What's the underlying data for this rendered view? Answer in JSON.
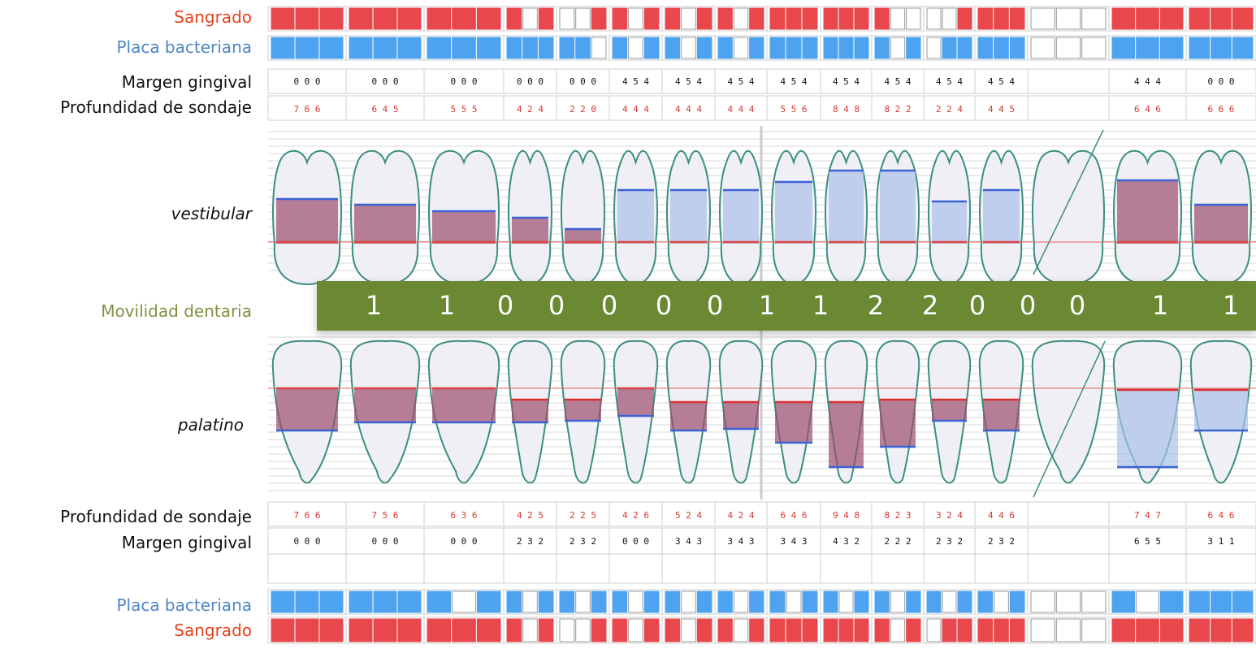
{
  "labels": {
    "bleeding_top": "Sangrado",
    "plaque_top": "Placa bacteriana",
    "margin_top": "Margen gingival",
    "probing_top": "Profundidad de sondaje",
    "vestibular": "vestibular",
    "mobility": "Movilidad dentaria",
    "palatal": "palatino",
    "probing_bottom": "Profundidad de sondaje",
    "margin_bottom": "Margen gingival",
    "plaque_bottom": "Placa bacteriana",
    "bleeding_bottom": "Sangrado"
  },
  "colors": {
    "bleeding": "#e8474c",
    "plaque": "#4da3f0",
    "probing_text": "#d8352f",
    "mobility_bar": "#6b8833",
    "tooth_outline": "#3b8f7e",
    "pocket_fill": "#9b4d6e",
    "pocket_fill_light": "#a9c0ea"
  },
  "columns": [
    {
      "bleed_top": [
        1,
        1,
        1
      ],
      "plaque_top": [
        1,
        1,
        1
      ],
      "margin_top": "0 0 0",
      "probing_top": "7 6 6",
      "mobility": "1",
      "probing_bottom": "7 6 6",
      "margin_bottom": "0 0 0",
      "plaque_bottom": [
        1,
        1,
        1
      ],
      "bleed_bottom": [
        1,
        1,
        1
      ]
    },
    {
      "bleed_top": [
        1,
        1,
        1
      ],
      "plaque_top": [
        1,
        1,
        1
      ],
      "margin_top": "0 0 0",
      "probing_top": "6 4 5",
      "mobility": "1",
      "probing_bottom": "7 5 6",
      "margin_bottom": "0 0 0",
      "plaque_bottom": [
        1,
        1,
        1
      ],
      "bleed_bottom": [
        1,
        1,
        1
      ]
    },
    {
      "bleed_top": [
        1,
        1,
        1
      ],
      "plaque_top": [
        1,
        1,
        1
      ],
      "margin_top": "0 0 0",
      "probing_top": "5 5 5",
      "mobility": "0",
      "probing_bottom": "6 3 6",
      "margin_bottom": "0 0 0",
      "plaque_bottom": [
        1,
        0,
        1
      ],
      "bleed_bottom": [
        1,
        1,
        1
      ]
    },
    {
      "bleed_top": [
        1,
        0,
        1
      ],
      "plaque_top": [
        1,
        1,
        1
      ],
      "margin_top": "0 0 0",
      "probing_top": "4 2 4",
      "mobility": "0",
      "probing_bottom": "4 2 5",
      "margin_bottom": "2 3 2",
      "plaque_bottom": [
        1,
        0,
        1
      ],
      "bleed_bottom": [
        1,
        0,
        1
      ]
    },
    {
      "bleed_top": [
        0,
        0,
        1
      ],
      "plaque_top": [
        1,
        1,
        0
      ],
      "margin_top": "0 0 0",
      "probing_top": "2 2 0",
      "mobility": "0",
      "probing_bottom": "2 2 5",
      "margin_bottom": "2 3 2",
      "plaque_bottom": [
        1,
        0,
        1
      ],
      "bleed_bottom": [
        0,
        0,
        1
      ]
    },
    {
      "bleed_top": [
        1,
        0,
        1
      ],
      "plaque_top": [
        1,
        0,
        1
      ],
      "margin_top": "4 5 4",
      "probing_top": "4 4 4",
      "mobility": "0",
      "probing_bottom": "4 2 6",
      "margin_bottom": "0 0 0",
      "plaque_bottom": [
        1,
        0,
        1
      ],
      "bleed_bottom": [
        1,
        0,
        1
      ]
    },
    {
      "bleed_top": [
        1,
        0,
        1
      ],
      "plaque_top": [
        1,
        0,
        1
      ],
      "margin_top": "4 5 4",
      "probing_top": "4 4 4",
      "mobility": "0",
      "probing_bottom": "5 2 4",
      "margin_bottom": "3 4 3",
      "plaque_bottom": [
        1,
        0,
        1
      ],
      "bleed_bottom": [
        1,
        0,
        1
      ]
    },
    {
      "bleed_top": [
        1,
        0,
        1
      ],
      "plaque_top": [
        1,
        0,
        1
      ],
      "margin_top": "4 5 4",
      "probing_top": "4 4 4",
      "mobility": "1",
      "probing_bottom": "4 2 4",
      "margin_bottom": "3 4 3",
      "plaque_bottom": [
        1,
        0,
        1
      ],
      "bleed_bottom": [
        1,
        0,
        1
      ]
    },
    {
      "bleed_top": [
        1,
        1,
        1
      ],
      "plaque_top": [
        1,
        1,
        1
      ],
      "margin_top": "4 5 4",
      "probing_top": "5 5 6",
      "mobility": "1",
      "probing_bottom": "6 4 6",
      "margin_bottom": "3 4 3",
      "plaque_bottom": [
        1,
        0,
        1
      ],
      "bleed_bottom": [
        1,
        1,
        1
      ]
    },
    {
      "bleed_top": [
        1,
        1,
        1
      ],
      "plaque_top": [
        1,
        1,
        1
      ],
      "margin_top": "4 5 4",
      "probing_top": "8 4 8",
      "mobility": "2",
      "probing_bottom": "9 4 8",
      "margin_bottom": "4 3 2",
      "plaque_bottom": [
        1,
        0,
        1
      ],
      "bleed_bottom": [
        1,
        1,
        1
      ]
    },
    {
      "bleed_top": [
        1,
        0,
        0
      ],
      "plaque_top": [
        1,
        0,
        1
      ],
      "margin_top": "4 5 4",
      "probing_top": "8 2 2",
      "mobility": "2",
      "probing_bottom": "8 2 3",
      "margin_bottom": "2 2 2",
      "plaque_bottom": [
        1,
        0,
        1
      ],
      "bleed_bottom": [
        1,
        0,
        1
      ]
    },
    {
      "bleed_top": [
        0,
        0,
        1
      ],
      "plaque_top": [
        0,
        1,
        1
      ],
      "margin_top": "4 5 4",
      "probing_top": "2 2 4",
      "mobility": "0",
      "probing_bottom": "3 2 4",
      "margin_bottom": "2 3 2",
      "plaque_bottom": [
        1,
        0,
        1
      ],
      "bleed_bottom": [
        0,
        1,
        1
      ]
    },
    {
      "bleed_top": [
        1,
        1,
        1
      ],
      "plaque_top": [
        1,
        1,
        1
      ],
      "margin_top": "4 5 4",
      "probing_top": "4 4 5",
      "mobility": "0",
      "probing_bottom": "4 4 6",
      "margin_bottom": "2 3 2",
      "plaque_bottom": [
        1,
        0,
        1
      ],
      "bleed_bottom": [
        1,
        1,
        1
      ]
    },
    {
      "bleed_top": [
        0,
        0,
        0
      ],
      "plaque_top": [
        0,
        0,
        0
      ],
      "margin_top": "",
      "probing_top": "",
      "mobility": "0",
      "probing_bottom": "",
      "margin_bottom": "",
      "plaque_bottom": [
        0,
        0,
        0
      ],
      "bleed_bottom": [
        0,
        0,
        0
      ],
      "missing": true
    },
    {
      "bleed_top": [
        1,
        1,
        1
      ],
      "plaque_top": [
        1,
        1,
        1
      ],
      "margin_top": "4 4 4",
      "probing_top": "6 4 6",
      "mobility": "1",
      "probing_bottom": "7 4 7",
      "margin_bottom": "6 5 5",
      "plaque_bottom": [
        1,
        0,
        1
      ],
      "bleed_bottom": [
        1,
        1,
        1
      ]
    },
    {
      "bleed_top": [
        1,
        1,
        1
      ],
      "plaque_top": [
        1,
        1,
        1
      ],
      "margin_top": "0 0 0",
      "probing_top": "6 6 6",
      "mobility": "1",
      "probing_bottom": "6 4 6",
      "margin_bottom": "3 1 1",
      "plaque_bottom": [
        1,
        1,
        1
      ],
      "bleed_bottom": [
        1,
        1,
        1
      ]
    }
  ]
}
